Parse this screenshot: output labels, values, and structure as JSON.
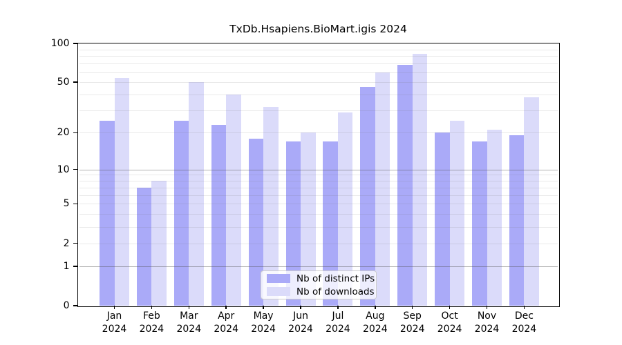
{
  "title": "TxDb.Hsapiens.BioMart.igis 2024",
  "colors": {
    "ips_bar": "#aaaaf8",
    "downloads_bar": "#dbdbfa",
    "frame": "#000000",
    "grid_major": "#9a9a9a",
    "grid_minor": "#e6e6e6",
    "legend_border": "#cccccc"
  },
  "legend": {
    "items": [
      {
        "label": "Nb of distinct IPs",
        "color": "#aaaaf8"
      },
      {
        "label": "Nb of downloads",
        "color": "#dbdbfa"
      }
    ]
  },
  "chart_data": {
    "type": "bar",
    "title": "TxDb.Hsapiens.BioMart.igis 2024",
    "categories": [
      "Jan 2024",
      "Feb 2024",
      "Mar 2024",
      "Apr 2024",
      "May 2024",
      "Jun 2024",
      "Jul 2024",
      "Aug 2024",
      "Sep 2024",
      "Oct 2024",
      "Nov 2024",
      "Dec 2024"
    ],
    "series": [
      {
        "name": "Nb of distinct IPs",
        "color": "#aaaaf8",
        "values": [
          25,
          7,
          25,
          23,
          18,
          17,
          17,
          46,
          68,
          20,
          17,
          19
        ]
      },
      {
        "name": "Nb of downloads",
        "color": "#dbdbfa",
        "values": [
          54,
          8,
          50,
          40,
          32,
          20,
          29,
          60,
          83,
          25,
          21,
          38
        ]
      }
    ],
    "xlabel": "",
    "ylabel": "",
    "yscale": "log1p",
    "ylim": [
      0,
      100
    ],
    "yticks": [
      0,
      1,
      2,
      5,
      10,
      20,
      50,
      100
    ],
    "grid": "horizontal",
    "grid_minor_values": [
      2,
      3,
      4,
      5,
      6,
      7,
      8,
      9,
      20,
      30,
      40,
      50,
      60,
      70,
      80,
      90
    ],
    "grid_major_values": [
      1,
      10
    ],
    "legend_position": "lower center"
  }
}
